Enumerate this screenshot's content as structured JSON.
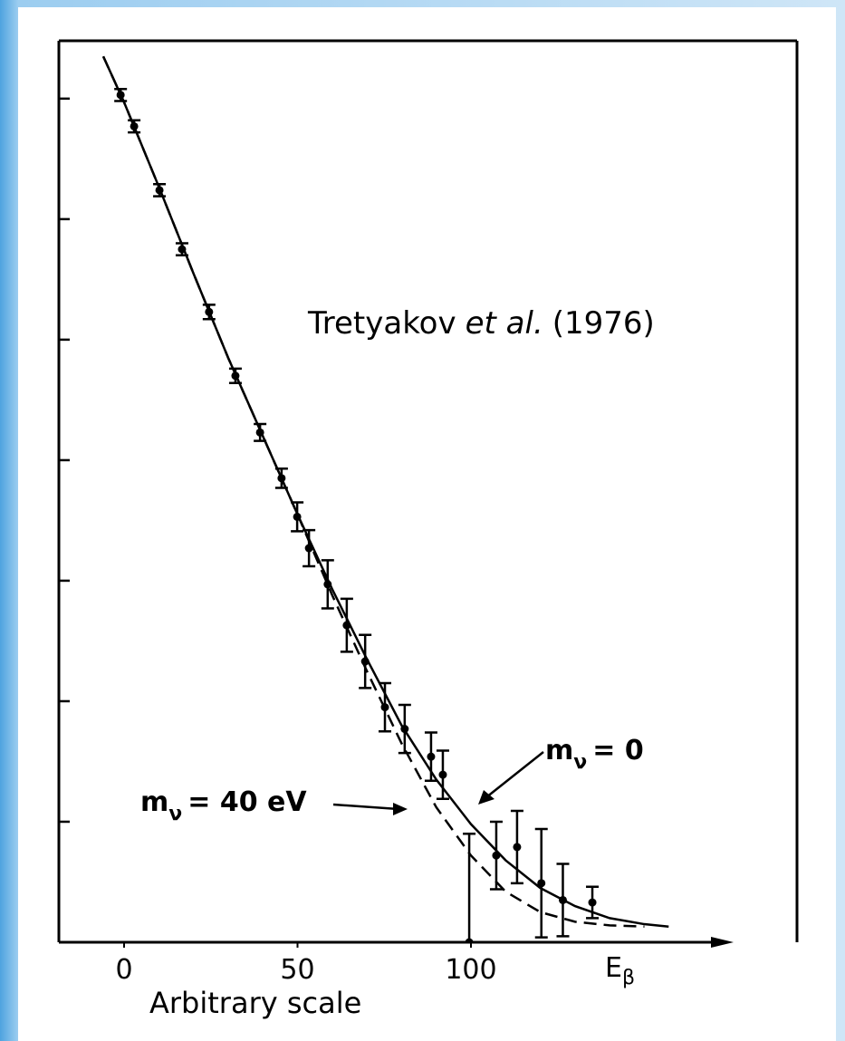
{
  "chart_data": {
    "type": "scatter",
    "xlabel": "Arbitrary scale",
    "x_unit_label": [
      "E",
      "β"
    ],
    "annotation": [
      "Tretyakov",
      "et al.",
      "(1976)"
    ],
    "xlim": [
      -18.8,
      194
    ],
    "xticks": [
      0,
      50,
      100
    ],
    "ylim": [
      0,
      7.48
    ],
    "yticks": [
      1,
      2,
      3,
      4,
      5,
      6,
      7
    ],
    "points": {
      "color": "#000000",
      "x": [
        -1,
        2.9,
        10.2,
        16.7,
        24.5,
        32.1,
        39.2,
        45.4,
        49.9,
        53.3,
        58.7,
        64.2,
        69.5,
        75.2,
        80.9,
        88.5,
        91.9,
        99.5,
        107.3,
        113.3,
        120.3,
        126.5,
        135
      ],
      "values": [
        7.03,
        6.77,
        6.24,
        5.75,
        5.23,
        4.7,
        4.23,
        3.85,
        3.53,
        3.27,
        2.97,
        2.63,
        2.33,
        1.95,
        1.77,
        1.54,
        1.39,
        0,
        0.72,
        0.79,
        0.49,
        0.35,
        0.33
      ],
      "errors": [
        0.05,
        0.05,
        0.05,
        0.05,
        0.06,
        0.06,
        0.07,
        0.08,
        0.12,
        0.15,
        0.2,
        0.22,
        0.22,
        0.2,
        0.2,
        0.2,
        0.2,
        0.9,
        0.28,
        0.3,
        0.45,
        0.3,
        0.13
      ]
    },
    "series": [
      {
        "label": [
          "m",
          "ν",
          "= 0"
        ],
        "color": "#000000",
        "dashed": false,
        "x": [
          -6,
          0,
          10,
          20,
          30,
          40,
          50,
          60,
          70,
          80,
          90,
          100,
          110,
          120,
          130,
          140,
          150,
          157
        ],
        "values": [
          7.35,
          6.97,
          6.27,
          5.55,
          4.85,
          4.2,
          3.55,
          2.93,
          2.35,
          1.8,
          1.35,
          0.98,
          0.68,
          0.45,
          0.3,
          0.2,
          0.15,
          0.13
        ]
      },
      {
        "label": [
          "m",
          "ν",
          "= 40  eV"
        ],
        "color": "#000000",
        "dashed": true,
        "x": [
          -6,
          0,
          10,
          20,
          30,
          40,
          50,
          60,
          70,
          80,
          90,
          100,
          110,
          120,
          130,
          140,
          150
        ],
        "values": [
          7.35,
          6.97,
          6.27,
          5.55,
          4.85,
          4.2,
          3.55,
          2.88,
          2.25,
          1.65,
          1.12,
          0.72,
          0.42,
          0.25,
          0.17,
          0.14,
          0.13
        ]
      }
    ]
  }
}
